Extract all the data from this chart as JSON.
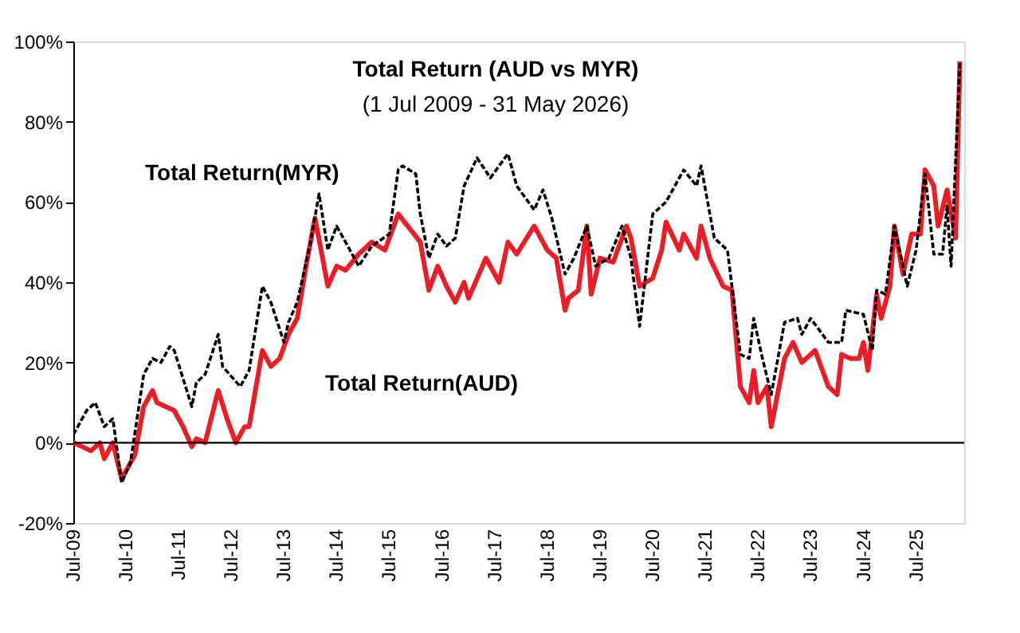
{
  "chart_data": {
    "type": "line",
    "title": "Total Return (AUD vs MYR)",
    "subtitle": "(1 Jul 2009 - 31 May 2026)",
    "legend": false,
    "grid": false,
    "marker": "none",
    "xlim": [
      "2009-07-01",
      "2026-05-31"
    ],
    "xticks": [
      {
        "value": "2009-07",
        "label": "Jul-09"
      },
      {
        "value": "2010-07",
        "label": "Jul-10"
      },
      {
        "value": "2011-07",
        "label": "Jul-11"
      },
      {
        "value": "2012-07",
        "label": "Jul-12"
      },
      {
        "value": "2013-07",
        "label": "Jul-13"
      },
      {
        "value": "2014-07",
        "label": "Jul-14"
      },
      {
        "value": "2015-07",
        "label": "Jul-15"
      },
      {
        "value": "2016-07",
        "label": "Jul-16"
      },
      {
        "value": "2017-07",
        "label": "Jul-17"
      },
      {
        "value": "2018-07",
        "label": "Jul-18"
      },
      {
        "value": "2019-07",
        "label": "Jul-19"
      },
      {
        "value": "2020-07",
        "label": "Jul-20"
      },
      {
        "value": "2021-07",
        "label": "Jul-21"
      },
      {
        "value": "2022-07",
        "label": "Jul-22"
      },
      {
        "value": "2023-07",
        "label": "Jul-23"
      },
      {
        "value": "2024-07",
        "label": "Jul-24"
      },
      {
        "value": "2025-07",
        "label": "Jul-25"
      }
    ],
    "ylim": [
      -20,
      100
    ],
    "yticks": [
      {
        "value": -20,
        "label": "-20%"
      },
      {
        "value": 0,
        "label": "0%"
      },
      {
        "value": 20,
        "label": "20%"
      },
      {
        "value": 40,
        "label": "40%"
      },
      {
        "value": 60,
        "label": "60%"
      },
      {
        "value": 80,
        "label": "80%"
      },
      {
        "value": 100,
        "label": "100%"
      }
    ],
    "ref_lines": [
      {
        "axis": "y",
        "value": 0,
        "color": "#000000",
        "line_style": "solid"
      }
    ],
    "series": [
      {
        "name": "Total Return(MYR)",
        "color": "#000000",
        "line_style": "dashed",
        "x": [
          "2009-07",
          "2009-10",
          "2009-12",
          "2010-02",
          "2010-04",
          "2010-06",
          "2010-08",
          "2010-11",
          "2011-01",
          "2011-03",
          "2011-05",
          "2011-06",
          "2011-10",
          "2011-11",
          "2012-01",
          "2012-04",
          "2012-05",
          "2012-09",
          "2012-11",
          "2013-02",
          "2013-04",
          "2013-07",
          "2013-08",
          "2013-10",
          "2014-01",
          "2014-03",
          "2014-05",
          "2014-07",
          "2014-09",
          "2014-12",
          "2015-03",
          "2015-07",
          "2015-09",
          "2015-10",
          "2016-01",
          "2016-02",
          "2016-04",
          "2016-06",
          "2016-08",
          "2016-10",
          "2016-12",
          "2017-03",
          "2017-06",
          "2017-10",
          "2017-12",
          "2018-04",
          "2018-06",
          "2018-08",
          "2018-11",
          "2019-01",
          "2019-04",
          "2019-06",
          "2019-09",
          "2019-12",
          "2020-02",
          "2020-04",
          "2020-07",
          "2020-10",
          "2021-02",
          "2021-05",
          "2021-06",
          "2021-09",
          "2021-12",
          "2022-03",
          "2022-05",
          "2022-06",
          "2022-08",
          "2022-10",
          "2023-01",
          "2023-04",
          "2023-05",
          "2023-07",
          "2023-11",
          "2024-02",
          "2024-03",
          "2024-07",
          "2024-09",
          "2024-10",
          "2024-12",
          "2025-02",
          "2025-05",
          "2025-07",
          "2025-09",
          "2025-11",
          "2026-01",
          "2026-02",
          "2026-03",
          "2026-05"
        ],
        "values": [
          2,
          8,
          10,
          4,
          6,
          -10,
          -5,
          17,
          21,
          20,
          24,
          23,
          9,
          15,
          17,
          27,
          19,
          14,
          18,
          39,
          35,
          25,
          30,
          35,
          50,
          62,
          48,
          54,
          50,
          44,
          49,
          52,
          68,
          69,
          67,
          57,
          46,
          52,
          49,
          51,
          64,
          71,
          66,
          72,
          64,
          58,
          63,
          56,
          42,
          46,
          54,
          44,
          46,
          54,
          46,
          29,
          57,
          60,
          68,
          64,
          69,
          51,
          48,
          22,
          21,
          31,
          21,
          12,
          30,
          31,
          27,
          31,
          25,
          25,
          33,
          32,
          23,
          38,
          37,
          54,
          39,
          48,
          67,
          47,
          47,
          59,
          44,
          95
        ]
      },
      {
        "name": "Total Return(AUD)",
        "color": "#ee1c25",
        "line_style": "solid",
        "x": [
          "2009-07",
          "2009-09",
          "2009-11",
          "2010-01",
          "2010-02",
          "2010-04",
          "2010-06",
          "2010-09",
          "2010-11",
          "2011-01",
          "2011-02",
          "2011-06",
          "2011-08",
          "2011-10",
          "2011-11",
          "2012-01",
          "2012-04",
          "2012-06",
          "2012-08",
          "2012-10",
          "2012-11",
          "2013-02",
          "2013-04",
          "2013-06",
          "2013-08",
          "2013-10",
          "2013-12",
          "2014-02",
          "2014-05",
          "2014-07",
          "2014-09",
          "2014-12",
          "2015-03",
          "2015-06",
          "2015-09",
          "2016-02",
          "2016-04",
          "2016-06",
          "2016-08",
          "2016-10",
          "2016-12",
          "2017-01",
          "2017-05",
          "2017-08",
          "2017-10",
          "2017-12",
          "2018-04",
          "2018-07",
          "2018-09",
          "2018-11-01",
          "2018-11-24",
          "2019-02",
          "2019-04",
          "2019-05",
          "2019-07",
          "2019-10",
          "2020-01",
          "2020-02",
          "2020-04",
          "2020-07",
          "2020-09",
          "2020-10",
          "2021-01",
          "2021-02",
          "2021-05",
          "2021-06",
          "2021-08",
          "2021-11",
          "2022-01",
          "2022-03",
          "2022-05",
          "2022-06",
          "2022-07",
          "2022-09",
          "2022-10",
          "2023-01",
          "2023-03",
          "2023-05",
          "2023-08",
          "2023-11",
          "2024-01",
          "2024-02",
          "2024-04",
          "2024-06",
          "2024-07",
          "2024-08",
          "2024-10",
          "2024-11",
          "2025-01",
          "2025-02",
          "2025-04",
          "2025-06",
          "2025-08",
          "2025-09",
          "2025-11",
          "2025-12",
          "2026-02",
          "2026-04",
          "2026-05"
        ],
        "values": [
          0,
          -1,
          -2,
          0,
          -4,
          0,
          -9,
          -3,
          9,
          13,
          10,
          8,
          4,
          -1,
          1,
          0,
          13,
          6,
          0,
          4,
          4,
          23,
          19,
          21,
          27,
          31,
          44,
          56,
          39,
          44,
          43,
          47,
          50,
          48,
          57,
          50,
          38,
          44,
          39,
          35,
          40,
          36,
          46,
          40,
          50,
          47,
          54,
          48,
          46,
          33,
          36,
          38,
          54,
          37,
          46,
          45,
          54,
          51,
          39,
          41,
          48,
          55,
          48,
          52,
          46,
          54,
          46,
          39,
          38,
          14,
          10,
          18,
          10,
          14,
          4,
          21,
          25,
          20,
          23,
          14,
          12,
          22,
          21,
          21,
          25,
          18,
          37,
          31,
          39,
          54,
          42,
          52,
          52,
          68,
          64,
          54,
          63,
          51,
          95
        ]
      }
    ]
  }
}
